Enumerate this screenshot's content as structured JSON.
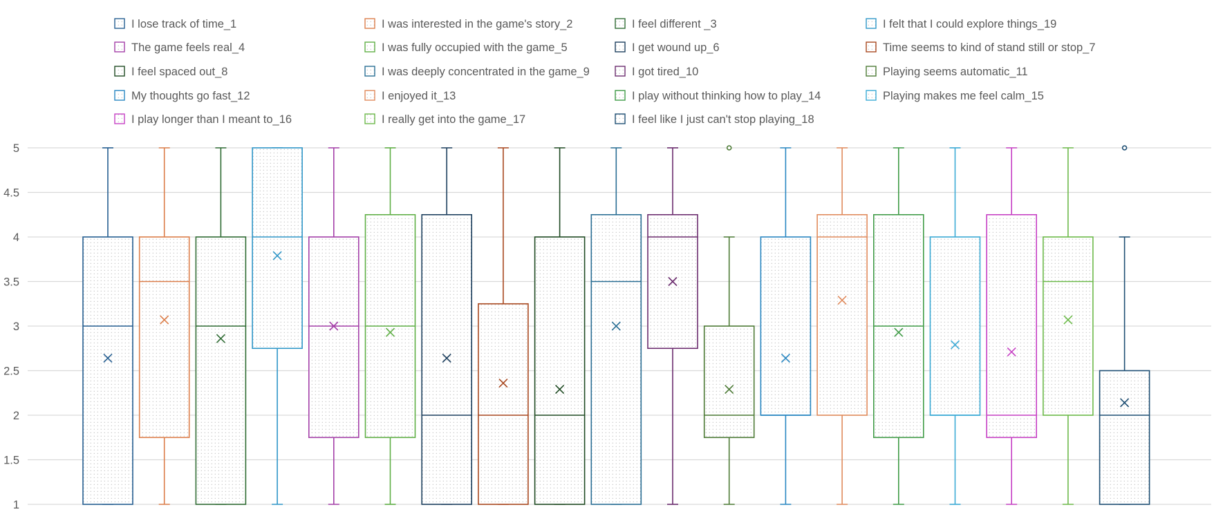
{
  "chart_data": {
    "type": "box",
    "ylim": [
      1,
      5
    ],
    "yticks": [
      "1",
      "1.5",
      "2",
      "2.5",
      "3",
      "3.5",
      "4",
      "4.5",
      "5"
    ],
    "grid": true,
    "legend_position": "top",
    "series": [
      {
        "name": "I lose track of time_1",
        "color": "#255E91",
        "min": 1,
        "q1": 1,
        "median": 3,
        "q3": 4,
        "max": 5,
        "mean": 2.64,
        "outliers": []
      },
      {
        "name": "I was interested in the game's story_2",
        "color": "#DC7E4A",
        "min": 1,
        "q1": 1.75,
        "median": 3.5,
        "q3": 4,
        "max": 5,
        "mean": 3.07,
        "outliers": []
      },
      {
        "name": "I feel different _3",
        "color": "#2F6B33",
        "min": 1,
        "q1": 1,
        "median": 3,
        "q3": 4,
        "max": 5,
        "mean": 2.86,
        "outliers": []
      },
      {
        "name": "I felt that I could explore things_19",
        "color": "#2E96C8",
        "min": 1,
        "q1": 2.75,
        "median": 4,
        "q3": 5,
        "max": 5,
        "mean": 3.79,
        "outliers": []
      },
      {
        "name": "The game feels real_4",
        "color": "#A43FA8",
        "min": 1,
        "q1": 1.75,
        "median": 3,
        "q3": 4,
        "max": 5,
        "mean": 3.0,
        "outliers": []
      },
      {
        "name": "I was fully occupied with the game_5",
        "color": "#5FAF45",
        "min": 1,
        "q1": 1.75,
        "median": 3,
        "q3": 4.25,
        "max": 5,
        "mean": 2.93,
        "outliers": []
      },
      {
        "name": "I get wound up_6",
        "color": "#1C3F5E",
        "min": 1,
        "q1": 1,
        "median": 2,
        "q3": 4.25,
        "max": 5,
        "mean": 2.64,
        "outliers": []
      },
      {
        "name": "Time seems to kind of stand still or stop_7",
        "color": "#A8471E",
        "min": 1,
        "q1": 1,
        "median": 2,
        "q3": 3.25,
        "max": 5,
        "mean": 2.36,
        "outliers": []
      },
      {
        "name": "I feel spaced out_8",
        "color": "#1E4A22",
        "min": 1,
        "q1": 1,
        "median": 2,
        "q3": 4,
        "max": 5,
        "mean": 2.29,
        "outliers": []
      },
      {
        "name": "I was deeply concentrated in the game_9",
        "color": "#296E94",
        "min": 1,
        "q1": 1,
        "median": 3.5,
        "q3": 4.25,
        "max": 5,
        "mean": 3.0,
        "outliers": []
      },
      {
        "name": "I got tired_10",
        "color": "#6B2C6E",
        "min": 1,
        "q1": 2.75,
        "median": 4,
        "q3": 4.25,
        "max": 5,
        "mean": 3.5,
        "outliers": []
      },
      {
        "name": "Playing seems automatic_11",
        "color": "#4C7A35",
        "min": 1,
        "q1": 1.75,
        "median": 2,
        "q3": 3,
        "max": 4,
        "mean": 2.29,
        "outliers": [
          5
        ]
      },
      {
        "name": "My thoughts go fast_12",
        "color": "#2987C2",
        "min": 1,
        "q1": 2,
        "median": 2,
        "q3": 4,
        "max": 5,
        "mean": 2.64,
        "outliers": []
      },
      {
        "name": "I enjoyed it_13",
        "color": "#E08A5C",
        "min": 1,
        "q1": 2,
        "median": 4,
        "q3": 4.25,
        "max": 5,
        "mean": 3.29,
        "outliers": []
      },
      {
        "name": "I play without thinking how to play_14",
        "color": "#3F9B46",
        "min": 1,
        "q1": 1.75,
        "median": 3,
        "q3": 4.25,
        "max": 5,
        "mean": 2.93,
        "outliers": []
      },
      {
        "name": "Playing makes me feel calm_15",
        "color": "#3AAAD6",
        "min": 1,
        "q1": 2,
        "median": 2,
        "q3": 4,
        "max": 5,
        "mean": 2.79,
        "outliers": []
      },
      {
        "name": "I play longer than I meant to_16",
        "color": "#C640C4",
        "min": 1,
        "q1": 1.75,
        "median": 2,
        "q3": 4.25,
        "max": 5,
        "mean": 2.71,
        "outliers": []
      },
      {
        "name": "I really get into the game_17",
        "color": "#6DBA4A",
        "min": 1,
        "q1": 2,
        "median": 3.5,
        "q3": 4,
        "max": 5,
        "mean": 3.07,
        "outliers": []
      },
      {
        "name": "I feel like I just can't stop playing_18",
        "color": "#1D4E73",
        "min": 1,
        "q1": 1,
        "median": 2,
        "q3": 2.5,
        "max": 4,
        "mean": 2.14,
        "outliers": [
          5
        ]
      }
    ],
    "legend_order": [
      0,
      1,
      2,
      3,
      4,
      5,
      6,
      7,
      8,
      9,
      10,
      11,
      12,
      13,
      14,
      15,
      16,
      17,
      18
    ]
  }
}
